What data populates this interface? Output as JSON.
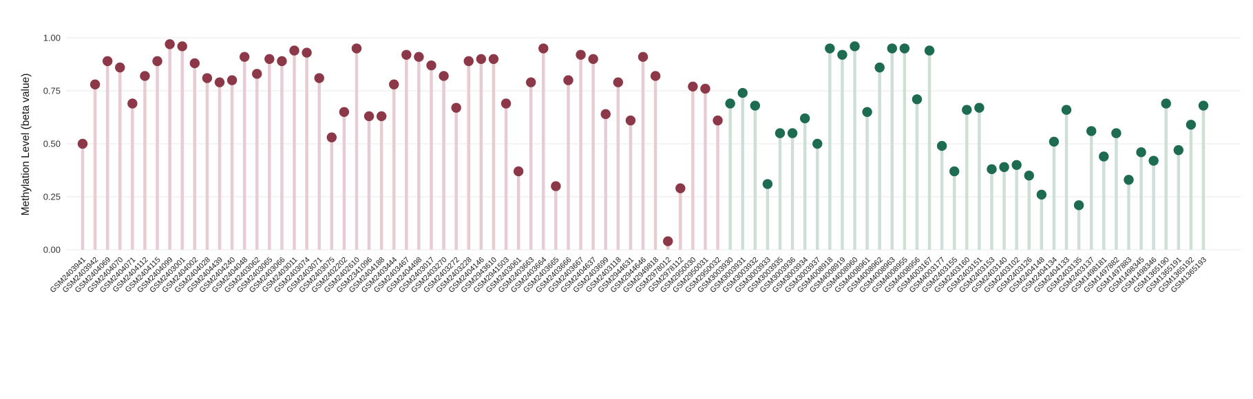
{
  "chart_data": {
    "type": "scatter",
    "style": "lollipop",
    "title": "",
    "xlabel": "",
    "ylabel": "Methylation Level (beta value)",
    "ylim": [
      0.0,
      1.0
    ],
    "yticks": [
      "0.00",
      "0.25",
      "0.50",
      "0.75",
      "1.00"
    ],
    "grid": "horizontal",
    "legend": "none",
    "groups": [
      {
        "name": "group-1",
        "dot_color": "#8d3848",
        "stem_color": "#e7ccd2",
        "count": 52
      },
      {
        "name": "group-2",
        "dot_color": "#1d6b50",
        "stem_color": "#cfdfd6",
        "count": 39
      }
    ],
    "categories": [
      "GSM2403941",
      "GSM2403942",
      "GSM2404069",
      "GSM2404070",
      "GSM2404071",
      "GSM2404112",
      "GSM2404115",
      "GSM2404099",
      "GSM2403001",
      "GSM2404002",
      "GSM2404028",
      "GSM2404439",
      "GSM2404240",
      "GSM2404048",
      "GSM2403062",
      "GSM2403065",
      "GSM2403066",
      "GSM2403011",
      "GSM2403074",
      "GSM2403071",
      "GSM2403075",
      "GSM2402202",
      "GSM2402610",
      "GSM2341096",
      "GSM2404188",
      "GSM2403444",
      "GSM2403467",
      "GSM2404498",
      "GSM2403017",
      "GSM2403270",
      "GSM2403272",
      "GSM2403228",
      "GSM2404146",
      "GSM2943610",
      "GSM2941503",
      "GSM2403061",
      "GSM2403663",
      "GSM2403664",
      "GSM2403665",
      "GSM2403666",
      "GSM2403667",
      "GSM2404637",
      "GSM2403699",
      "GSM2403118",
      "GSM2944631",
      "GSM2944646",
      "GSM2949818",
      "GSM2978012",
      "GSM2978112",
      "GSM2950030",
      "GSM2950031",
      "GSM2950032",
      "GSM3003930",
      "GSM3003931",
      "GSM3003932",
      "GSM3003933",
      "GSM3003935",
      "GSM3003936",
      "GSM3003934",
      "GSM3003937",
      "GSM4008918",
      "GSM4008919",
      "GSM4008960",
      "GSM4008961",
      "GSM4008962",
      "GSM4008963",
      "GSM4008955",
      "GSM4008956",
      "GSM4003167",
      "GSM4003177",
      "GSM2403155",
      "GSM2403160",
      "GSM2403151",
      "GSM2403153",
      "GSM2403140",
      "GSM2403102",
      "GSM2403126",
      "GSM2404148",
      "GSM2404134",
      "GSM2404133",
      "GSM2403135",
      "GSM2403137",
      "GSM1498181",
      "GSM1497882",
      "GSM1497883",
      "GSM1498345",
      "GSM1498346",
      "GSM1365190",
      "GSM1365191",
      "GSM1365192",
      "GSM1365193"
    ],
    "values": [
      0.5,
      0.78,
      0.89,
      0.86,
      0.69,
      0.82,
      0.89,
      0.97,
      0.96,
      0.88,
      0.81,
      0.79,
      0.8,
      0.91,
      0.83,
      0.9,
      0.89,
      0.94,
      0.93,
      0.81,
      0.53,
      0.65,
      0.95,
      0.63,
      0.63,
      0.78,
      0.92,
      0.91,
      0.87,
      0.82,
      0.67,
      0.89,
      0.9,
      0.9,
      0.69,
      0.37,
      0.79,
      0.95,
      0.3,
      0.8,
      0.92,
      0.9,
      0.64,
      0.79,
      0.61,
      0.91,
      0.82,
      0.04,
      0.29,
      0.77,
      0.76,
      0.61,
      0.69,
      0.74,
      0.68,
      0.31,
      0.55,
      0.55,
      0.62,
      0.5,
      0.95,
      0.92,
      0.96,
      0.65,
      0.86,
      0.95,
      0.95,
      0.71,
      0.94,
      0.49,
      0.37,
      0.66,
      0.67,
      0.38,
      0.39,
      0.4,
      0.35,
      0.26,
      0.51,
      0.66,
      0.21,
      0.56,
      0.44,
      0.55,
      0.33,
      0.46,
      0.42,
      0.69,
      0.47,
      0.59,
      0.68
    ]
  }
}
